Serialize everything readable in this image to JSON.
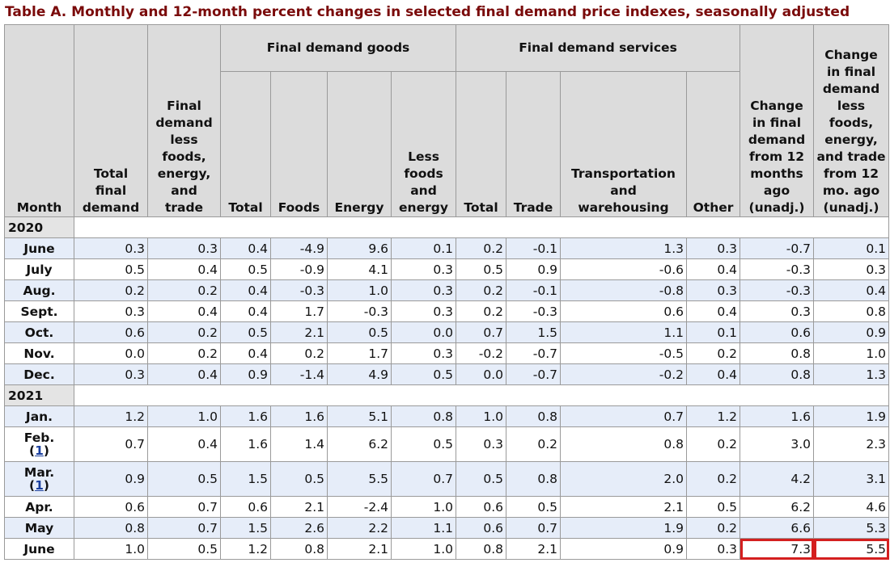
{
  "caption": "Table A. Monthly and 12-month percent changes in selected final demand price indexes, seasonally adjusted",
  "headers": {
    "month": "Month",
    "total_final_demand": "Total final demand",
    "fd_less": "Final demand less foods, energy, and trade",
    "goods_group": "Final demand goods",
    "goods_total": "Total",
    "foods": "Foods",
    "energy": "Energy",
    "less_foods_energy": "Less foods and energy",
    "services_group": "Final demand services",
    "services_total": "Total",
    "trade": "Trade",
    "transport": "Transportation and warehousing",
    "other": "Other",
    "change12": "Change in final demand from 12 months ago (unadj.)",
    "change12_core": "Change in final demand less foods, energy, and trade from 12 mo. ago (unadj.)"
  },
  "years": [
    "2020",
    "2021"
  ],
  "rows": [
    {
      "month": "June",
      "footnote": "",
      "values": [
        "0.3",
        "0.3",
        "0.4",
        "-4.9",
        "9.6",
        "0.1",
        "0.2",
        "-0.1",
        "1.3",
        "0.3",
        "-0.7",
        "0.1"
      ]
    },
    {
      "month": "July",
      "footnote": "",
      "values": [
        "0.5",
        "0.4",
        "0.5",
        "-0.9",
        "4.1",
        "0.3",
        "0.5",
        "0.9",
        "-0.6",
        "0.4",
        "-0.3",
        "0.3"
      ]
    },
    {
      "month": "Aug.",
      "footnote": "",
      "values": [
        "0.2",
        "0.2",
        "0.4",
        "-0.3",
        "1.0",
        "0.3",
        "0.2",
        "-0.1",
        "-0.8",
        "0.3",
        "-0.3",
        "0.4"
      ]
    },
    {
      "month": "Sept.",
      "footnote": "",
      "values": [
        "0.3",
        "0.4",
        "0.4",
        "1.7",
        "-0.3",
        "0.3",
        "0.2",
        "-0.3",
        "0.6",
        "0.4",
        "0.3",
        "0.8"
      ]
    },
    {
      "month": "Oct.",
      "footnote": "",
      "values": [
        "0.6",
        "0.2",
        "0.5",
        "2.1",
        "0.5",
        "0.0",
        "0.7",
        "1.5",
        "1.1",
        "0.1",
        "0.6",
        "0.9"
      ]
    },
    {
      "month": "Nov.",
      "footnote": "",
      "values": [
        "0.0",
        "0.2",
        "0.4",
        "0.2",
        "1.7",
        "0.3",
        "-0.2",
        "-0.7",
        "-0.5",
        "0.2",
        "0.8",
        "1.0"
      ]
    },
    {
      "month": "Dec.",
      "footnote": "",
      "values": [
        "0.3",
        "0.4",
        "0.9",
        "-1.4",
        "4.9",
        "0.5",
        "0.0",
        "-0.7",
        "-0.2",
        "0.4",
        "0.8",
        "1.3"
      ]
    },
    {
      "month": "Jan.",
      "footnote": "",
      "values": [
        "1.2",
        "1.0",
        "1.6",
        "1.6",
        "5.1",
        "0.8",
        "1.0",
        "0.8",
        "0.7",
        "1.2",
        "1.6",
        "1.9"
      ]
    },
    {
      "month": "Feb.",
      "footnote": "1",
      "values": [
        "0.7",
        "0.4",
        "1.6",
        "1.4",
        "6.2",
        "0.5",
        "0.3",
        "0.2",
        "0.8",
        "0.2",
        "3.0",
        "2.3"
      ]
    },
    {
      "month": "Mar.",
      "footnote": "1",
      "values": [
        "0.9",
        "0.5",
        "1.5",
        "0.5",
        "5.5",
        "0.7",
        "0.5",
        "0.8",
        "2.0",
        "0.2",
        "4.2",
        "3.1"
      ]
    },
    {
      "month": "Apr.",
      "footnote": "",
      "values": [
        "0.6",
        "0.7",
        "0.6",
        "2.1",
        "-2.4",
        "1.0",
        "0.6",
        "0.5",
        "2.1",
        "0.5",
        "6.2",
        "4.6"
      ]
    },
    {
      "month": "May",
      "footnote": "",
      "values": [
        "0.8",
        "0.7",
        "1.5",
        "2.6",
        "2.2",
        "1.1",
        "0.6",
        "0.7",
        "1.9",
        "0.2",
        "6.6",
        "5.3"
      ]
    },
    {
      "month": "June",
      "footnote": "",
      "values": [
        "1.0",
        "0.5",
        "1.2",
        "0.8",
        "2.1",
        "1.0",
        "0.8",
        "2.1",
        "0.9",
        "0.3",
        "7.3",
        "5.5"
      ]
    }
  ],
  "colors": {
    "caption": "#7a0a0a",
    "header_bg": "#dcdcdc",
    "row_alt": "#e6edf9",
    "highlight": "#d41f1f",
    "link": "#1a3f9e"
  }
}
